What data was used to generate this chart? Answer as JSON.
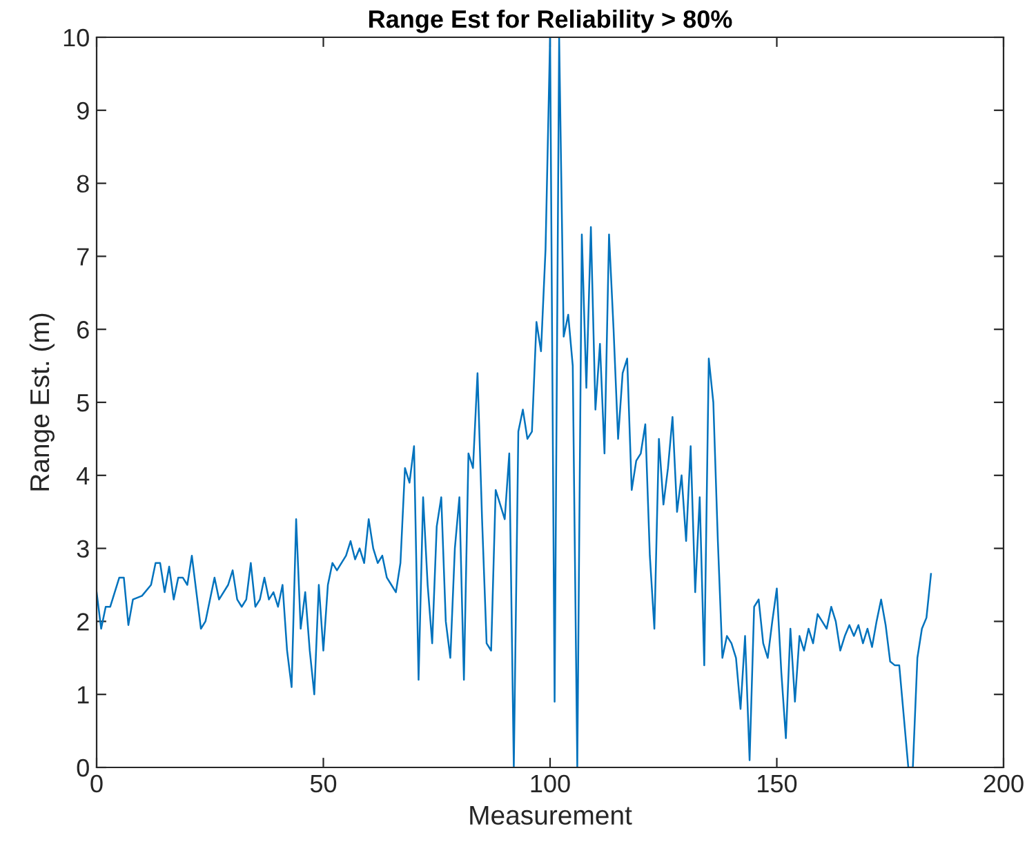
{
  "chart_data": {
    "type": "line",
    "title": "Range Est for Reliability > 80%",
    "xlabel": "Measurement",
    "ylabel": "Range Est. (m)",
    "xlim": [
      0,
      200
    ],
    "xticks": [
      0,
      50,
      100,
      150,
      200
    ],
    "ylim": [
      0,
      10
    ],
    "yticks": [
      0,
      1,
      2,
      3,
      4,
      5,
      6,
      7,
      8,
      9,
      10
    ],
    "grid": false,
    "legend": false,
    "series": [
      {
        "color": "#0072bd",
        "x": [
          0,
          1,
          2,
          3,
          5,
          6,
          7,
          8,
          10,
          12,
          13,
          14,
          15,
          16,
          17,
          18,
          19,
          20,
          21,
          22,
          23,
          24,
          26,
          27,
          29,
          30,
          31,
          32,
          33,
          34,
          35,
          36,
          37,
          38,
          39,
          40,
          41,
          42,
          43,
          44,
          45,
          46,
          47,
          48,
          49,
          50,
          51,
          52,
          53,
          55,
          56,
          57,
          58,
          59,
          60,
          61,
          62,
          63,
          64,
          65,
          66,
          67,
          68,
          69,
          70,
          71,
          72,
          73,
          74,
          75,
          76,
          77,
          78,
          79,
          80,
          81,
          82,
          83,
          84,
          85,
          86,
          87,
          88,
          89,
          90,
          91,
          92,
          93,
          94,
          95,
          96,
          97,
          98,
          99,
          100,
          101,
          102,
          103,
          104,
          105,
          106,
          107,
          108,
          109,
          110,
          111,
          112,
          113,
          114,
          115,
          116,
          117,
          118,
          119,
          120,
          121,
          122,
          123,
          124,
          125,
          126,
          127,
          128,
          129,
          130,
          131,
          132,
          133,
          134,
          135,
          136,
          137,
          138,
          139,
          140,
          141,
          142,
          143,
          144,
          145,
          146,
          147,
          148,
          149,
          150,
          151,
          152,
          153,
          154,
          155,
          156,
          157,
          158,
          159,
          160,
          161,
          162,
          163,
          164,
          165,
          166,
          167,
          168,
          169,
          170,
          171,
          172,
          173,
          174,
          175,
          176,
          177,
          178,
          179,
          180,
          181,
          182,
          183,
          184
        ],
        "values": [
          2.4,
          1.9,
          2.2,
          2.2,
          2.6,
          2.6,
          1.95,
          2.3,
          2.35,
          2.5,
          2.8,
          2.8,
          2.4,
          2.75,
          2.3,
          2.6,
          2.6,
          2.5,
          2.9,
          2.4,
          1.9,
          2.0,
          2.6,
          2.3,
          2.5,
          2.7,
          2.3,
          2.2,
          2.3,
          2.8,
          2.2,
          2.3,
          2.6,
          2.3,
          2.4,
          2.2,
          2.5,
          1.6,
          1.1,
          3.4,
          1.9,
          2.4,
          1.6,
          1.0,
          2.5,
          1.6,
          2.5,
          2.8,
          2.7,
          2.9,
          3.1,
          2.85,
          3.0,
          2.8,
          3.4,
          3.0,
          2.8,
          2.9,
          2.6,
          2.5,
          2.4,
          2.8,
          4.1,
          3.9,
          4.4,
          1.2,
          3.7,
          2.5,
          1.7,
          3.3,
          3.7,
          2.0,
          1.5,
          3.0,
          3.7,
          1.2,
          4.3,
          4.1,
          5.4,
          3.4,
          1.7,
          1.6,
          3.8,
          3.6,
          3.4,
          4.3,
          0,
          4.6,
          4.9,
          4.5,
          4.6,
          6.1,
          5.7,
          7.1,
          10,
          0.9,
          10,
          5.9,
          6.2,
          5.5,
          0,
          7.3,
          5.2,
          7.4,
          4.9,
          5.8,
          4.3,
          7.3,
          6.0,
          4.5,
          5.4,
          5.6,
          3.8,
          4.2,
          4.3,
          4.7,
          2.9,
          1.9,
          4.5,
          3.6,
          4.1,
          4.8,
          3.5,
          4.0,
          3.1,
          4.4,
          2.4,
          3.7,
          1.4,
          5.6,
          5.0,
          3.1,
          1.5,
          1.8,
          1.7,
          1.5,
          0.8,
          1.8,
          0.1,
          2.2,
          2.3,
          1.7,
          1.5,
          2.0,
          2.45,
          1.3,
          0.4,
          1.9,
          0.9,
          1.8,
          1.6,
          1.9,
          1.7,
          2.1,
          2.0,
          1.9,
          2.2,
          2.0,
          1.6,
          1.8,
          1.95,
          1.8,
          1.95,
          1.7,
          1.9,
          1.65,
          2.0,
          2.3,
          1.95,
          1.45,
          1.4,
          1.4,
          0.7,
          0,
          0,
          1.5,
          1.9,
          2.05,
          2.65
        ]
      }
    ]
  }
}
